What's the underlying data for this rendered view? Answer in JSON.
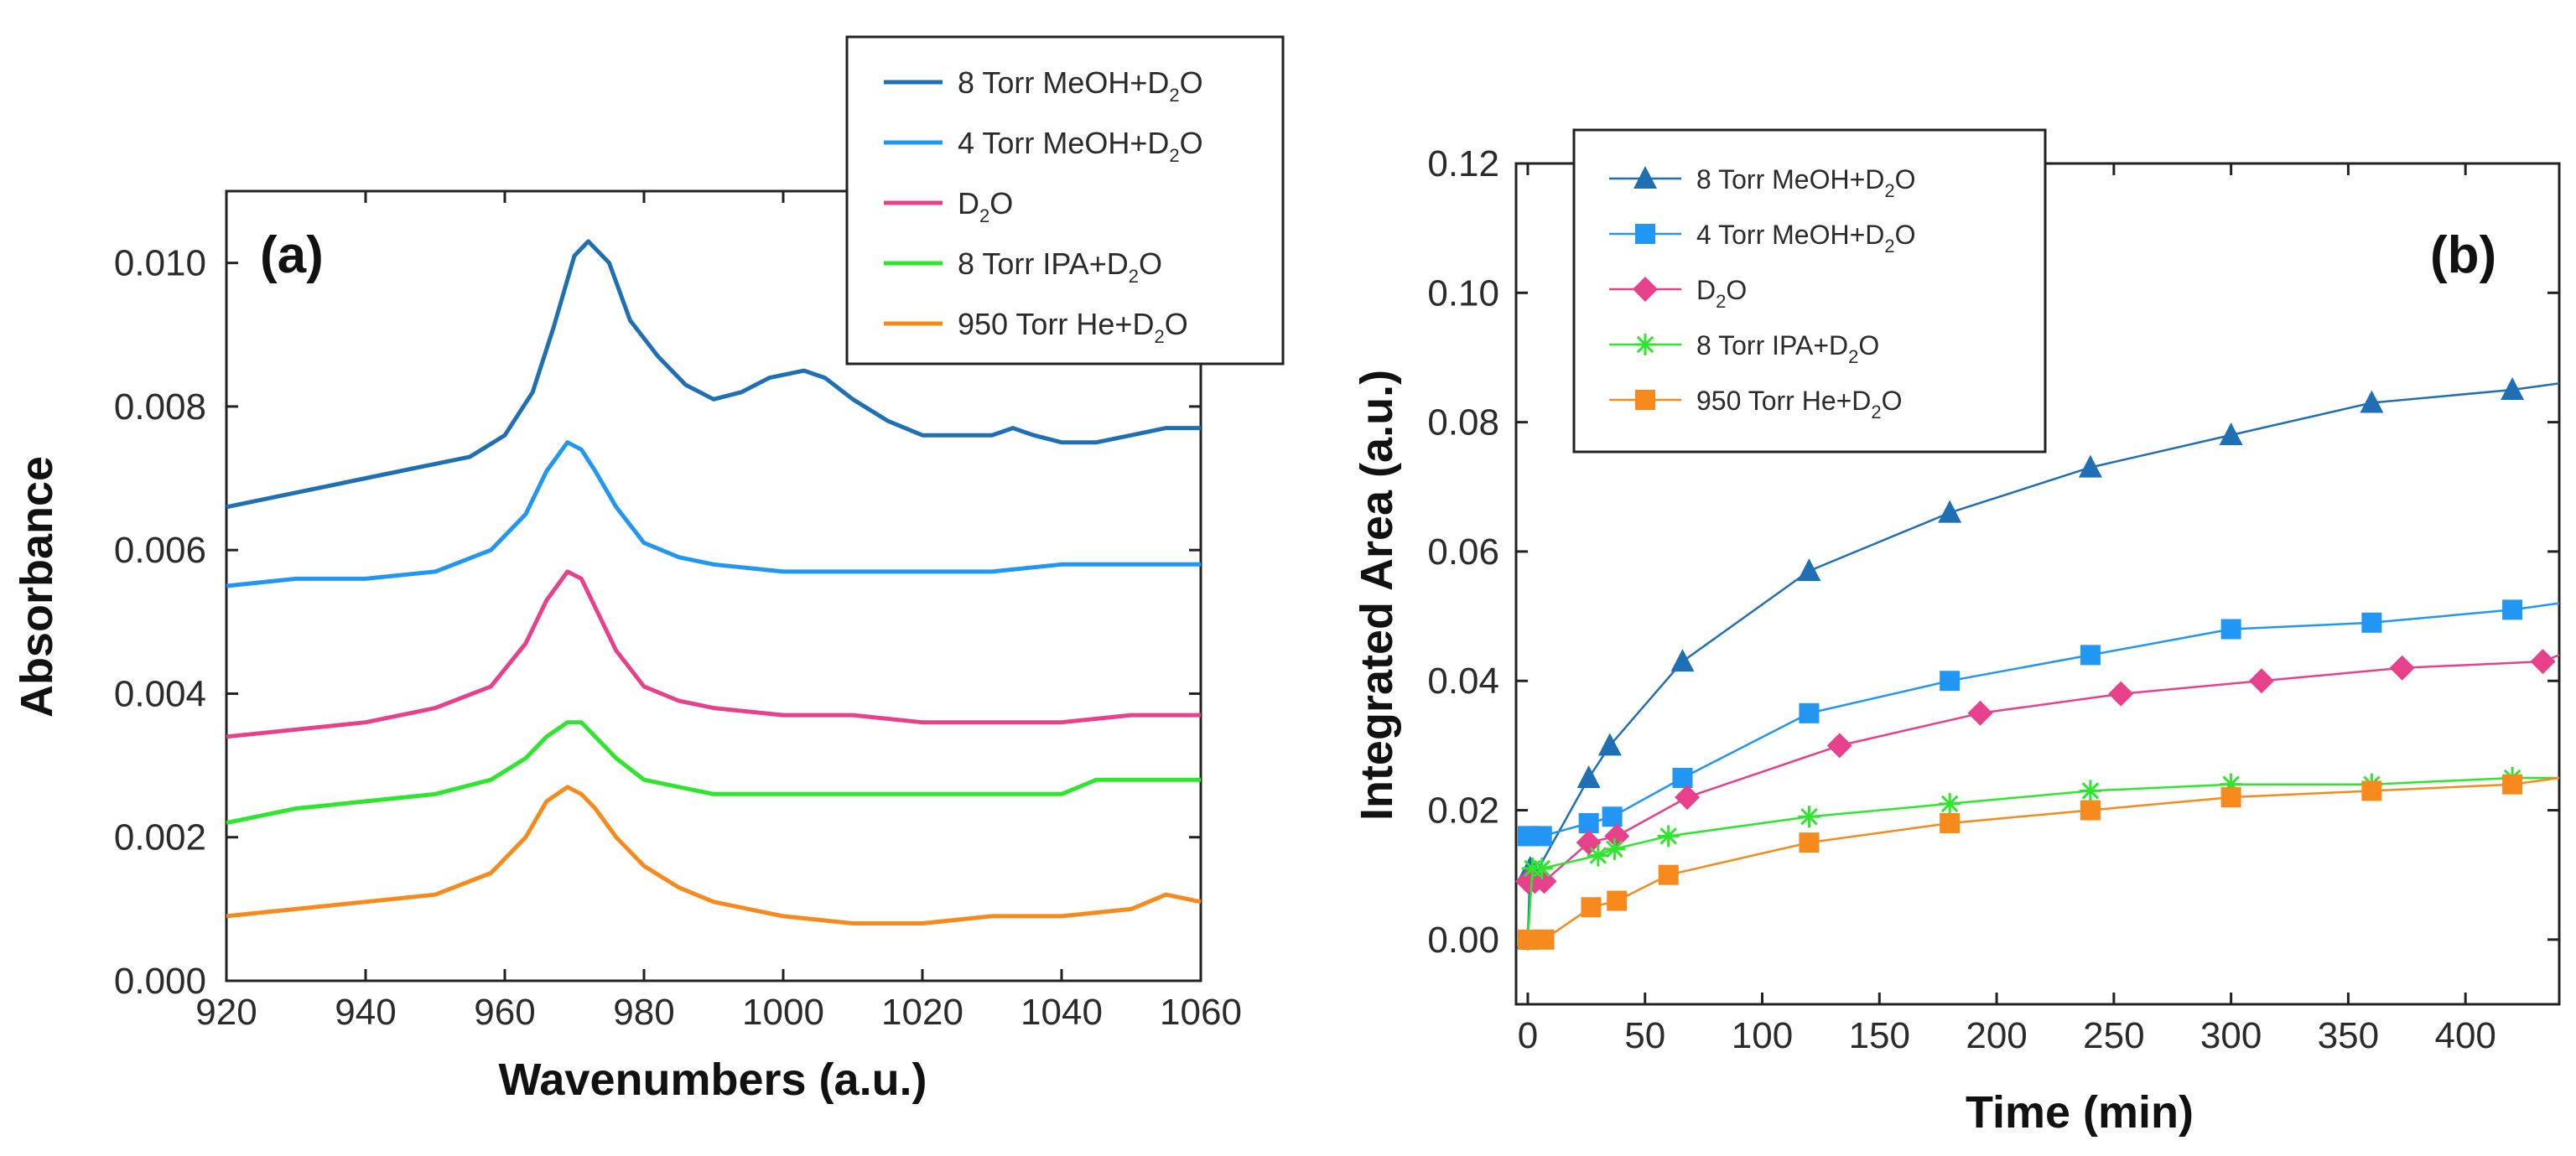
{
  "chart_data": [
    {
      "panel": "(a)",
      "type": "line",
      "xlabel": "Wavenumbers (a.u.)",
      "ylabel": "Absorbance",
      "xlim": [
        920,
        1060
      ],
      "ylim": [
        0.0,
        0.011
      ],
      "xticks": [
        "920",
        "940",
        "960",
        "980",
        "1000",
        "1020",
        "1040",
        "1060"
      ],
      "yticks": [
        "0.000",
        "0.002",
        "0.004",
        "0.006",
        "0.008",
        "0.010"
      ],
      "legend_position": "top-right",
      "series": [
        {
          "name": "8 Torr MeOH+D2O",
          "label_main": "8 Torr MeOH+D",
          "label_sub": "2",
          "label_tail": "O",
          "color": "#1f6fb4",
          "x": [
            920,
            930,
            940,
            950,
            955,
            960,
            964,
            967,
            970,
            972,
            975,
            978,
            982,
            986,
            990,
            994,
            998,
            1003,
            1006,
            1010,
            1015,
            1020,
            1025,
            1030,
            1033,
            1036,
            1040,
            1045,
            1050,
            1055,
            1060
          ],
          "y": [
            0.0066,
            0.0068,
            0.007,
            0.0072,
            0.0073,
            0.0076,
            0.0082,
            0.0091,
            0.0101,
            0.0103,
            0.01,
            0.0092,
            0.0087,
            0.0083,
            0.0081,
            0.0082,
            0.0084,
            0.0085,
            0.0084,
            0.0081,
            0.0078,
            0.0076,
            0.0076,
            0.0076,
            0.0077,
            0.0076,
            0.0075,
            0.0075,
            0.0076,
            0.0077,
            0.0077
          ]
        },
        {
          "name": "4 Torr MeOH+D2O",
          "label_main": "4 Torr MeOH+D",
          "label_sub": "2",
          "label_tail": "O",
          "color": "#2196f3",
          "x": [
            920,
            930,
            940,
            950,
            958,
            963,
            966,
            969,
            971,
            973,
            976,
            980,
            985,
            990,
            1000,
            1010,
            1020,
            1030,
            1040,
            1050,
            1060
          ],
          "y": [
            0.0055,
            0.0056,
            0.0056,
            0.0057,
            0.006,
            0.0065,
            0.0071,
            0.0075,
            0.0074,
            0.0071,
            0.0066,
            0.0061,
            0.0059,
            0.0058,
            0.0057,
            0.0057,
            0.0057,
            0.0057,
            0.0058,
            0.0058,
            0.0058
          ]
        },
        {
          "name": "D2O",
          "label_main": "D",
          "label_sub": "2",
          "label_tail": "O",
          "color": "#e8418c",
          "x": [
            920,
            930,
            940,
            950,
            958,
            963,
            966,
            969,
            971,
            973,
            976,
            980,
            985,
            990,
            1000,
            1010,
            1020,
            1030,
            1040,
            1050,
            1060
          ],
          "y": [
            0.0034,
            0.0035,
            0.0036,
            0.0038,
            0.0041,
            0.0047,
            0.0053,
            0.0057,
            0.0056,
            0.0052,
            0.0046,
            0.0041,
            0.0039,
            0.0038,
            0.0037,
            0.0037,
            0.0036,
            0.0036,
            0.0036,
            0.0037,
            0.0037
          ]
        },
        {
          "name": "8 Torr IPA+D2O",
          "label_main": "8 Torr IPA+D",
          "label_sub": "2",
          "label_tail": "O",
          "color": "#2ee62e",
          "x": [
            920,
            930,
            940,
            950,
            958,
            963,
            966,
            969,
            971,
            973,
            976,
            980,
            985,
            990,
            1000,
            1010,
            1020,
            1030,
            1040,
            1045,
            1050,
            1060
          ],
          "y": [
            0.0022,
            0.0024,
            0.0025,
            0.0026,
            0.0028,
            0.0031,
            0.0034,
            0.0036,
            0.0036,
            0.0034,
            0.0031,
            0.0028,
            0.0027,
            0.0026,
            0.0026,
            0.0026,
            0.0026,
            0.0026,
            0.0026,
            0.0028,
            0.0028,
            0.0028
          ]
        },
        {
          "name": "950 Torr He+D2O",
          "label_main": "950 Torr He+D",
          "label_sub": "2",
          "label_tail": "O",
          "color": "#f78a1d",
          "x": [
            920,
            930,
            940,
            950,
            958,
            963,
            966,
            969,
            971,
            973,
            976,
            980,
            985,
            990,
            995,
            1000,
            1010,
            1020,
            1030,
            1040,
            1050,
            1055,
            1060
          ],
          "y": [
            0.0009,
            0.001,
            0.0011,
            0.0012,
            0.0015,
            0.002,
            0.0025,
            0.0027,
            0.0026,
            0.0024,
            0.002,
            0.0016,
            0.0013,
            0.0011,
            0.001,
            0.0009,
            0.0008,
            0.0008,
            0.0009,
            0.0009,
            0.001,
            0.0012,
            0.0011
          ]
        }
      ]
    },
    {
      "panel": "(b)",
      "type": "scatter",
      "xlabel": "Time (min)",
      "ylabel": "Integrated Area (a.u.)",
      "xlim": [
        -5,
        440
      ],
      "ylim": [
        -0.01,
        0.12
      ],
      "xticks": [
        "0",
        "50",
        "100",
        "150",
        "200",
        "250",
        "300",
        "350",
        "400"
      ],
      "yticks": [
        "0.00",
        "0.02",
        "0.04",
        "0.06",
        "0.08",
        "0.10",
        "0.12"
      ],
      "legend_position": "top-left",
      "series": [
        {
          "name": "8 Torr MeOH+D2O",
          "label_main": "8 Torr MeOH+D",
          "label_sub": "2",
          "label_tail": "O",
          "color": "#1f6fb4",
          "marker": "triangle",
          "x": [
            0,
            1,
            3,
            26,
            35,
            66,
            120,
            180,
            240,
            300,
            360,
            420
          ],
          "y": [
            0.0,
            0.011,
            0.01,
            0.025,
            0.03,
            0.043,
            0.057,
            0.066,
            0.073,
            0.078,
            0.083,
            0.085
          ],
          "fit_x": [
            440
          ],
          "fit_y": [
            0.086
          ]
        },
        {
          "name": "4 Torr MeOH+D2O",
          "label_main": "4 Torr MeOH+D",
          "label_sub": "2",
          "label_tail": "O",
          "color": "#2196f3",
          "marker": "square",
          "x": [
            0,
            1,
            6,
            26,
            36,
            66,
            120,
            180,
            240,
            300,
            360,
            420
          ],
          "y": [
            0.016,
            0.016,
            0.016,
            0.018,
            0.019,
            0.025,
            0.035,
            0.04,
            0.044,
            0.048,
            0.049,
            0.051
          ],
          "fit_x": [
            440
          ],
          "fit_y": [
            0.052
          ]
        },
        {
          "name": "D2O",
          "label_main": "D",
          "label_sub": "2",
          "label_tail": "O",
          "color": "#e8418c",
          "marker": "diamond",
          "x": [
            0,
            3,
            7,
            26,
            38,
            68,
            133,
            193,
            253,
            313,
            373,
            433
          ],
          "y": [
            0.009,
            0.009,
            0.009,
            0.015,
            0.016,
            0.022,
            0.03,
            0.035,
            0.038,
            0.04,
            0.042,
            0.043
          ],
          "fit_x": [
            440
          ],
          "fit_y": [
            0.044
          ]
        },
        {
          "name": "8 Torr IPA+D2O",
          "label_main": "8 Torr IPA+D",
          "label_sub": "2",
          "label_tail": "O",
          "color": "#2ee62e",
          "marker": "star",
          "x": [
            0,
            2,
            6,
            30,
            37,
            60,
            120,
            180,
            240,
            300,
            360,
            420
          ],
          "y": [
            0.0,
            0.011,
            0.011,
            0.013,
            0.014,
            0.016,
            0.019,
            0.021,
            0.023,
            0.024,
            0.024,
            0.025
          ],
          "fit_x": [
            440
          ],
          "fit_y": [
            0.025
          ]
        },
        {
          "name": "950 Torr He+D2O",
          "label_main": "950 Torr He+D",
          "label_sub": "2",
          "label_tail": "O",
          "color": "#f78a1d",
          "marker": "square",
          "x": [
            0,
            7,
            27,
            38,
            60,
            120,
            180,
            240,
            300,
            360,
            420
          ],
          "y": [
            0.0,
            0.0,
            0.005,
            0.006,
            0.01,
            0.015,
            0.018,
            0.02,
            0.022,
            0.023,
            0.024
          ],
          "fit_x": [
            440
          ],
          "fit_y": [
            0.025
          ]
        }
      ]
    }
  ]
}
